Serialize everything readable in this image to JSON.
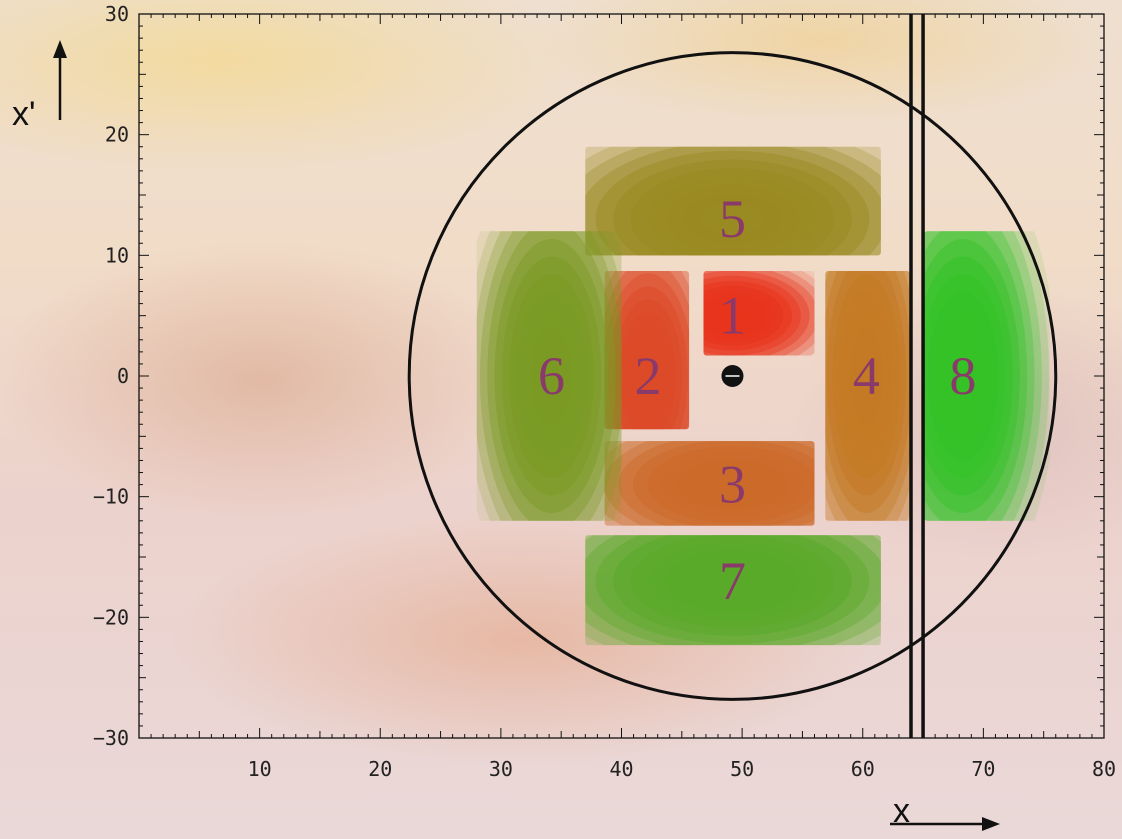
{
  "chart_data": {
    "type": "contour-scatter",
    "xlabel": "x",
    "ylabel": "x'",
    "xlim": [
      0,
      80
    ],
    "ylim": [
      -30,
      30
    ],
    "x_ticks": [
      10,
      20,
      30,
      40,
      50,
      60,
      70,
      80
    ],
    "y_ticks": [
      30,
      20,
      10,
      0,
      -10,
      -20,
      -30
    ],
    "y_tick_labels": [
      "30",
      "20",
      "10",
      "0",
      "−10",
      "−20",
      "−30"
    ],
    "circle": {
      "cx": 49.2,
      "cy": 0,
      "r": 26.8
    },
    "center_point": {
      "x": 49.2,
      "y": 0
    },
    "vertical_lines": [
      64.0,
      65.0
    ],
    "islands": [
      {
        "label": "1",
        "cx": 49.2,
        "cy": 5.0,
        "sx": 6.0,
        "sy": 3.5,
        "x_range": [
          46.8,
          56.0
        ],
        "y_range": [
          1.7,
          8.7
        ],
        "color": "#e8341c"
      },
      {
        "label": "2",
        "cx": 42.2,
        "cy": 0.0,
        "sx": 4.0,
        "sy": 9.0,
        "x_range": [
          38.6,
          45.6
        ],
        "y_range": [
          -4.4,
          8.7
        ],
        "color": "#dc4a28"
      },
      {
        "label": "3",
        "cx": 49.2,
        "cy": -9.0,
        "sx": 10.0,
        "sy": 4.5,
        "x_range": [
          38.6,
          56.0
        ],
        "y_range": [
          -12.4,
          -5.4
        ],
        "color": "#cc6a2a"
      },
      {
        "label": "4",
        "cx": 60.3,
        "cy": 0.0,
        "sx": 4.0,
        "sy": 12.0,
        "x_range": [
          56.9,
          63.9
        ],
        "y_range": [
          -12.0,
          8.7
        ],
        "color": "#c47a24"
      },
      {
        "label": "5",
        "cx": 49.2,
        "cy": 13.0,
        "sx": 12.0,
        "sy": 6.0,
        "x_range": [
          37.0,
          61.5
        ],
        "y_range": [
          10.0,
          19.0
        ],
        "color": "#9a8a22"
      },
      {
        "label": "6",
        "cx": 34.2,
        "cy": 0.0,
        "sx": 5.0,
        "sy": 12.0,
        "x_range": [
          28.0,
          40.0
        ],
        "y_range": [
          -12.0,
          12.0
        ],
        "color": "#7a9a24"
      },
      {
        "label": "7",
        "cx": 49.2,
        "cy": -17.0,
        "sx": 12.0,
        "sy": 5.5,
        "x_range": [
          37.0,
          61.5
        ],
        "y_range": [
          -22.3,
          -13.2
        ],
        "color": "#5aaa2a"
      },
      {
        "label": "8",
        "cx": 68.3,
        "cy": 0.0,
        "sx": 5.0,
        "sy": 12.0,
        "x_range": [
          65.1,
          75.5
        ],
        "y_range": [
          -12.0,
          12.0
        ],
        "color": "#34c228"
      }
    ],
    "grid": false,
    "legend": "none"
  }
}
